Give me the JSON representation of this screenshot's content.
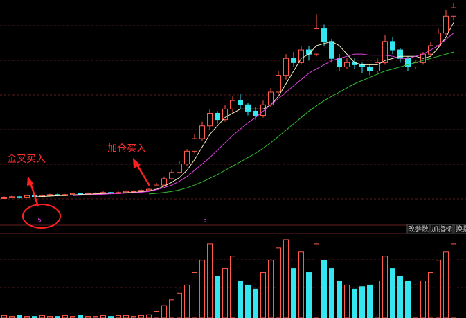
{
  "chart_data": {
    "type": "candlestick",
    "ylim": [
      -5,
      100
    ],
    "up_color": "#ff5a4a",
    "down_color": "#33e6f0",
    "open": [
      7.8,
      8,
      8.5,
      8,
      9,
      8.5,
      9,
      9.5,
      9,
      9.5,
      10,
      9.5,
      10,
      10,
      10.5,
      10,
      10.5,
      11,
      11,
      11.5,
      12,
      14,
      17,
      20,
      24,
      30,
      36,
      42,
      48,
      45,
      50,
      54,
      52,
      49,
      47,
      52,
      58,
      66,
      74,
      72,
      78,
      76,
      88,
      82,
      74,
      70,
      72,
      71,
      70,
      68,
      72,
      82,
      78,
      74,
      70,
      72,
      76,
      80,
      86,
      94
    ],
    "high": [
      8.6,
      9,
      8.8,
      9.4,
      9.3,
      9.6,
      9.9,
      10,
      9.8,
      10.4,
      10.3,
      10.5,
      10.6,
      11,
      10.8,
      11,
      11.5,
      11.6,
      12,
      12.6,
      15,
      18,
      21.5,
      25.5,
      31,
      38,
      44,
      50,
      49,
      52,
      56,
      57,
      53,
      51,
      54,
      60,
      68,
      76,
      77,
      80,
      80,
      95,
      90,
      83,
      76,
      74,
      74,
      72,
      71,
      74,
      85,
      84,
      79,
      75,
      73,
      77,
      82,
      88,
      97,
      100
    ],
    "low": [
      7.5,
      7.8,
      7.6,
      7.8,
      8.2,
      8.3,
      8.8,
      8.7,
      8.8,
      9.2,
      9.2,
      9.3,
      9.6,
      9.8,
      9.7,
      9.8,
      10.2,
      10.6,
      10.8,
      11.2,
      11.8,
      13.5,
      16.5,
      19.5,
      23,
      29,
      35,
      40,
      43,
      44,
      48,
      50,
      47,
      45,
      46,
      51,
      57,
      64,
      70,
      71,
      73,
      75,
      80,
      72,
      68,
      69,
      69,
      67,
      66,
      67,
      71,
      76,
      72,
      68,
      69,
      71,
      75,
      79,
      85,
      92
    ],
    "close": [
      8,
      8.5,
      8,
      9,
      8.5,
      9,
      9.5,
      9,
      9.5,
      10,
      9.5,
      10,
      10,
      10.5,
      10,
      10.5,
      11,
      11,
      11.5,
      12,
      14,
      17,
      20,
      24,
      30,
      36,
      42,
      48,
      45,
      50,
      54,
      52,
      49,
      47,
      52,
      58,
      66,
      74,
      72,
      78,
      76,
      88,
      82,
      74,
      70,
      72,
      71,
      70,
      68,
      72,
      82,
      78,
      74,
      70,
      72,
      76,
      80,
      86,
      94,
      98
    ],
    "lines": [
      {
        "color": "#f0f0c0",
        "values": [
          null,
          null,
          null,
          null,
          8.4,
          8.6,
          8.8,
          9,
          9.1,
          9.4,
          9.5,
          9.7,
          9.8,
          10,
          10,
          10.2,
          10.4,
          10.6,
          10.8,
          11.2,
          12,
          13.5,
          15.3,
          17.5,
          21,
          26,
          32,
          38,
          42,
          46,
          48,
          50,
          50,
          50,
          50,
          52,
          56,
          62,
          68,
          74,
          76,
          80,
          81,
          82,
          80,
          76,
          72,
          71,
          71,
          71,
          73,
          74,
          75,
          75,
          75,
          74,
          75,
          79,
          84,
          91
        ]
      },
      {
        "color": "#e040e0",
        "values": [
          null,
          null,
          null,
          null,
          null,
          null,
          null,
          null,
          null,
          9,
          9.2,
          9.4,
          9.5,
          9.7,
          9.9,
          10,
          10.2,
          10.4,
          10.6,
          11,
          11.8,
          12.8,
          14,
          15.8,
          18,
          21,
          24,
          27,
          30.5,
          34,
          37.5,
          40.5,
          43.5,
          46,
          49,
          52,
          55,
          58,
          61,
          64,
          67,
          69,
          71,
          73,
          74,
          75,
          76,
          76,
          75.5,
          75.5,
          75.5,
          75,
          74,
          74,
          75,
          76,
          78,
          80,
          83,
          86
        ]
      },
      {
        "color": "#30c030",
        "values": [
          null,
          null,
          null,
          null,
          null,
          null,
          null,
          null,
          null,
          null,
          null,
          null,
          null,
          null,
          null,
          null,
          null,
          null,
          null,
          9.8,
          10.1,
          10.5,
          11,
          11.7,
          12.7,
          14,
          15.5,
          17.2,
          19,
          21,
          23,
          25,
          27,
          29,
          31.5,
          34,
          37,
          40,
          43,
          46,
          49,
          51.5,
          54,
          56,
          58,
          60,
          62,
          63.5,
          65,
          66.5,
          68,
          69,
          70,
          71,
          72,
          73,
          74,
          75,
          76,
          77
        ]
      }
    ],
    "volume": {
      "ylim": [
        0,
        100
      ],
      "values": [
        3,
        2,
        3,
        2,
        2,
        3,
        2,
        2,
        3,
        2,
        3,
        2,
        2,
        3,
        2,
        3,
        3,
        2,
        3,
        4,
        8,
        15,
        22,
        30,
        40,
        55,
        70,
        90,
        50,
        60,
        75,
        45,
        40,
        35,
        55,
        70,
        85,
        95,
        60,
        80,
        55,
        90,
        70,
        60,
        45,
        40,
        35,
        38,
        40,
        45,
        75,
        60,
        50,
        45,
        40,
        45,
        55,
        70,
        80,
        90
      ]
    },
    "annotations": [
      "金叉买入",
      "加仓买入",
      "5",
      "5"
    ]
  },
  "toolbar": [
    "改参数",
    "加指标",
    "换指"
  ]
}
